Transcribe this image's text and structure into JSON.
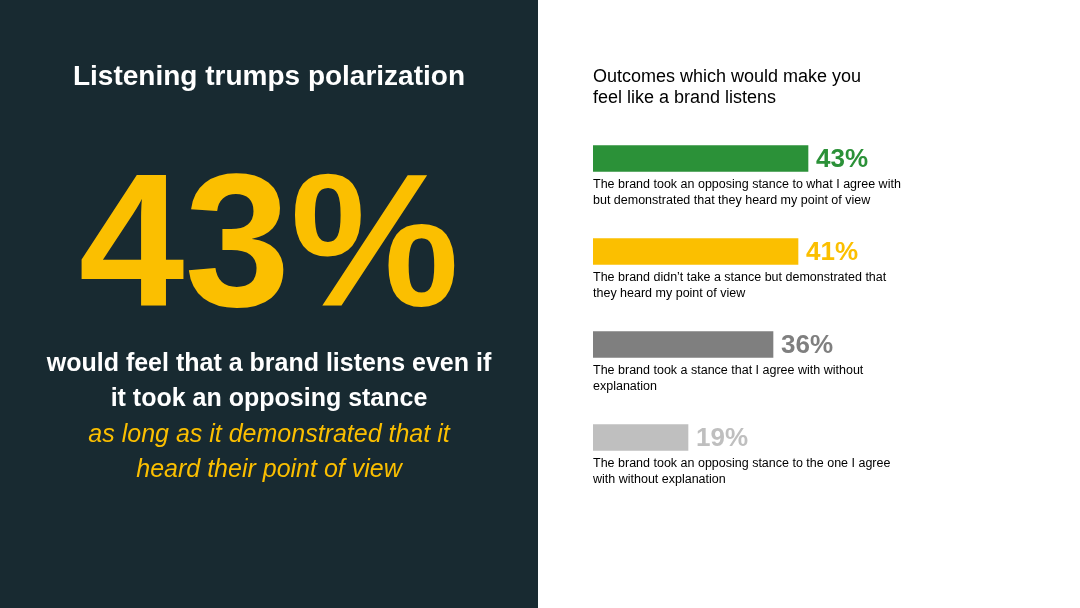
{
  "chart_data": [
    {
      "type": "other",
      "title": "Listening trumps polarization",
      "annotations": [
        "43%",
        "would feel that a brand listens even if it took an opposing stance",
        "as long as it demonstrated that it heard their point of view"
      ]
    },
    {
      "type": "bar",
      "orientation": "horizontal",
      "title": "Outcomes which would make you feel like a brand listens",
      "categories": [
        "The brand took an opposing stance to what I agree with but demonstrated that they heard my point of view",
        "The brand didn’t take a stance but demonstrated that they heard my point of view",
        "The brand took a stance that I agree with without explanation",
        "The brand took an opposing stance to the one I agree with without explanation"
      ],
      "values": [
        43,
        41,
        36,
        19
      ],
      "colors": [
        "#2b9138",
        "#fbbf00",
        "#7f7f7f",
        "#bfbfbf"
      ],
      "value_labels": [
        "43%",
        "41%",
        "36%",
        "19%"
      ]
    }
  ]
}
